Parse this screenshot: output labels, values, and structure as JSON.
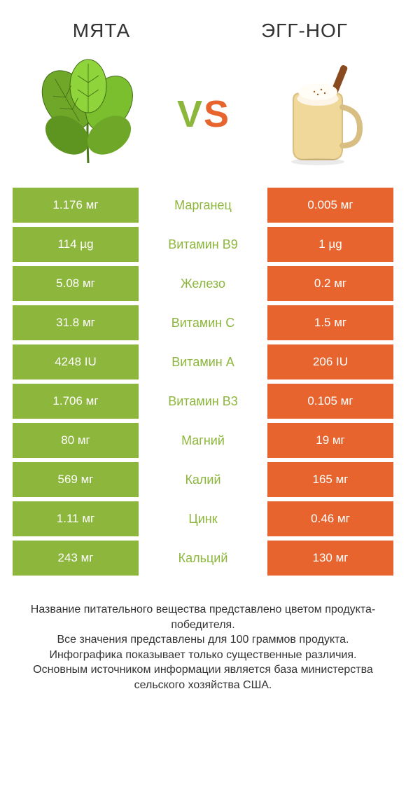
{
  "colors": {
    "left": "#8cb63c",
    "right": "#e8642e",
    "mid_text_winner_left": "#8cb63c",
    "mid_text_winner_right": "#e8642e",
    "text": "#333333",
    "bg": "#ffffff"
  },
  "header": {
    "left": "МЯТА",
    "right": "ЭГГ-НОГ"
  },
  "vs": {
    "v": "V",
    "s": "S"
  },
  "rows": [
    {
      "left": "1.176 мг",
      "mid": "Марганец",
      "right": "0.005 мг",
      "winner": "left"
    },
    {
      "left": "114 µg",
      "mid": "Витамин B9",
      "right": "1 µg",
      "winner": "left"
    },
    {
      "left": "5.08 мг",
      "mid": "Железо",
      "right": "0.2 мг",
      "winner": "left"
    },
    {
      "left": "31.8 мг",
      "mid": "Витамин C",
      "right": "1.5 мг",
      "winner": "left"
    },
    {
      "left": "4248 IU",
      "mid": "Витамин A",
      "right": "206 IU",
      "winner": "left"
    },
    {
      "left": "1.706 мг",
      "mid": "Витамин B3",
      "right": "0.105 мг",
      "winner": "left"
    },
    {
      "left": "80 мг",
      "mid": "Магний",
      "right": "19 мг",
      "winner": "left"
    },
    {
      "left": "569 мг",
      "mid": "Калий",
      "right": "165 мг",
      "winner": "left"
    },
    {
      "left": "1.11 мг",
      "mid": "Цинк",
      "right": "0.46 мг",
      "winner": "left"
    },
    {
      "left": "243 мг",
      "mid": "Кальций",
      "right": "130 мг",
      "winner": "left"
    }
  ],
  "footer": "Название питательного вещества представлено цветом продукта-победителя.\nВсе значения представлены для 100 граммов продукта.\nИнфографика показывает только существенные различия.\nОсновным источником информации является база министерства сельского хозяйства США."
}
